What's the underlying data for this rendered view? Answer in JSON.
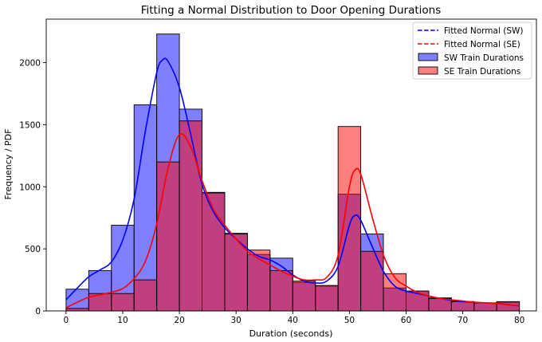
{
  "chart_data": {
    "type": "bar",
    "title": "Fitting a Normal Distribution to Door Opening Durations",
    "xlabel": "Duration (seconds)",
    "ylabel": "Frequency / PDF",
    "xlim": [
      -3.5,
      83
    ],
    "ylim": [
      0,
      2350
    ],
    "xticks": [
      0,
      10,
      20,
      30,
      40,
      50,
      60,
      70,
      80
    ],
    "yticks": [
      0,
      500,
      1000,
      1500,
      2000
    ],
    "bin_edges": [
      0,
      4,
      8,
      12,
      16,
      20,
      24,
      28,
      32,
      36,
      40,
      44,
      48,
      52,
      56,
      60,
      64,
      68,
      72,
      76,
      80
    ],
    "histograms": [
      {
        "name": "SW Train Durations",
        "color": "#0000ff",
        "counts": [
          175,
          325,
          690,
          1660,
          2230,
          1625,
          955,
          625,
          455,
          425,
          230,
          200,
          940,
          620,
          185,
          160,
          105,
          75,
          65,
          70
        ]
      },
      {
        "name": "SE Train Durations",
        "color": "#ff0000",
        "counts": [
          20,
          140,
          140,
          250,
          1200,
          1530,
          950,
          620,
          490,
          325,
          240,
          205,
          1485,
          480,
          300,
          160,
          100,
          75,
          65,
          75
        ]
      }
    ],
    "curves": [
      {
        "name": "Fitted Normal (SW)",
        "color": "#0000ff",
        "x": [
          0,
          2,
          4,
          6,
          8,
          10,
          12,
          14,
          16,
          17,
          18,
          20,
          22,
          24,
          26,
          28,
          30,
          32,
          34,
          36,
          38,
          40,
          42,
          44,
          46,
          48,
          50,
          51,
          52,
          54,
          56,
          58,
          60,
          62,
          64,
          66,
          68,
          70,
          72,
          74,
          76,
          78,
          80
        ],
        "y": [
          90,
          185,
          275,
          330,
          395,
          570,
          900,
          1450,
          1920,
          2020,
          2010,
          1800,
          1420,
          1020,
          800,
          670,
          580,
          500,
          440,
          410,
          360,
          290,
          240,
          225,
          240,
          360,
          690,
          770,
          730,
          520,
          320,
          200,
          160,
          140,
          120,
          100,
          85,
          75,
          70,
          65,
          60,
          50,
          40
        ]
      },
      {
        "name": "Fitted Normal (SE)",
        "color": "#ff0000",
        "x": [
          0,
          2,
          4,
          6,
          8,
          10,
          12,
          14,
          16,
          18,
          20,
          22,
          24,
          26,
          28,
          30,
          32,
          34,
          36,
          38,
          40,
          42,
          44,
          46,
          48,
          50,
          51,
          52,
          54,
          56,
          58,
          60,
          62,
          64,
          66,
          68,
          70,
          72,
          74,
          76,
          78,
          80
        ],
        "y": [
          25,
          70,
          110,
          130,
          150,
          180,
          260,
          400,
          700,
          1150,
          1420,
          1320,
          1050,
          820,
          690,
          580,
          480,
          420,
          370,
          320,
          280,
          250,
          250,
          270,
          450,
          1000,
          1135,
          1100,
          760,
          450,
          270,
          200,
          150,
          120,
          100,
          90,
          80,
          70,
          65,
          60,
          50,
          40
        ]
      }
    ],
    "legend_position": "top-right",
    "legend": [
      {
        "label": "Fitted Normal (SW)",
        "kind": "dashed-line",
        "color": "#0000ff"
      },
      {
        "label": "Fitted Normal (SE)",
        "kind": "dashed-line",
        "color": "#ff0000"
      },
      {
        "label": "SW Train Durations",
        "kind": "patch",
        "color": "#0000ff"
      },
      {
        "label": "SE Train Durations",
        "kind": "patch",
        "color": "#ff0000"
      }
    ],
    "grid": false
  }
}
